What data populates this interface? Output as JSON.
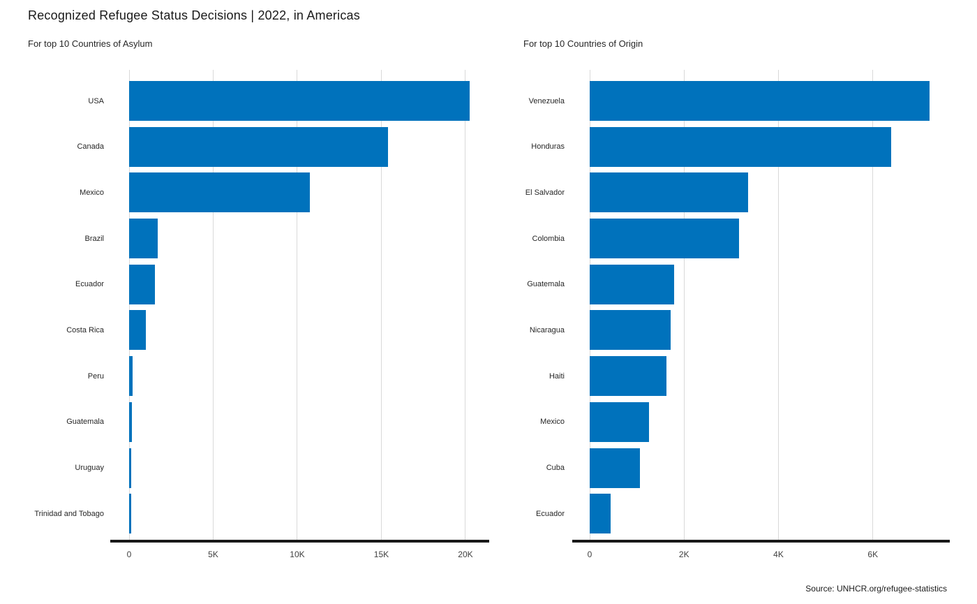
{
  "title": "Recognized Refugee Status Decisions | 2022, in Americas",
  "source": "Source: UNHCR.org/refugee-statistics",
  "colors": {
    "bar": "#0072bc",
    "grid": "#d9d9d9",
    "axis": "#191919",
    "text": "#1a1a1a"
  },
  "chart_data": [
    {
      "type": "bar",
      "orientation": "horizontal",
      "title": "For top 10 Countries of Asylum",
      "categories": [
        "USA",
        "Canada",
        "Mexico",
        "Brazil",
        "Ecuador",
        "Costa Rica",
        "Peru",
        "Guatemala",
        "Uruguay",
        "Trinidad and Tobago"
      ],
      "values": [
        20250,
        15400,
        10750,
        1720,
        1550,
        980,
        220,
        170,
        120,
        110
      ],
      "xlabel": "",
      "ylabel": "",
      "xmax": 21370,
      "grid": true,
      "legend": false,
      "xticks": [
        {
          "value": 0,
          "label": "0"
        },
        {
          "value": 5000,
          "label": "5K"
        },
        {
          "value": 10000,
          "label": "10K"
        },
        {
          "value": 15000,
          "label": "15K"
        },
        {
          "value": 20000,
          "label": "20K"
        }
      ]
    },
    {
      "type": "bar",
      "orientation": "horizontal",
      "title": "For top 10 Countries of Origin",
      "categories": [
        "Venezuela",
        "Honduras",
        "El Salvador",
        "Colombia",
        "Guatemala",
        "Nicaragua",
        "Haiti",
        "Mexico",
        "Cuba",
        "Ecuador"
      ],
      "values": [
        7200,
        6390,
        3360,
        3170,
        1790,
        1720,
        1630,
        1260,
        1070,
        450
      ],
      "xlabel": "",
      "ylabel": "",
      "xmax": 7630,
      "grid": true,
      "legend": false,
      "xticks": [
        {
          "value": 0,
          "label": "0"
        },
        {
          "value": 2000,
          "label": "2K"
        },
        {
          "value": 4000,
          "label": "4K"
        },
        {
          "value": 6000,
          "label": "6K"
        }
      ]
    }
  ]
}
